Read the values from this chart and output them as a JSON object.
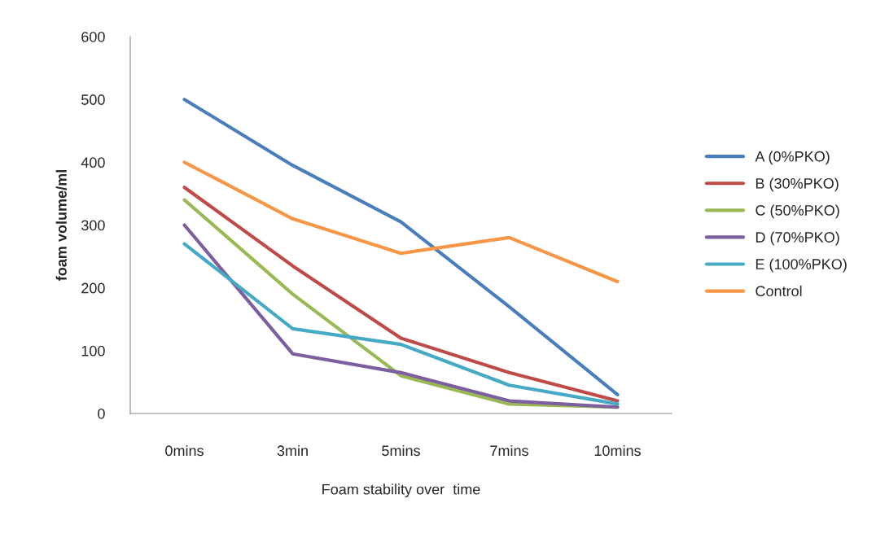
{
  "chart_data": {
    "type": "line",
    "xlabel": "Foam stability over  time",
    "ylabel": "foam volume/ml",
    "categories": [
      "0mins",
      "3min",
      "5mins",
      "7mins",
      "10mins"
    ],
    "series": [
      {
        "name": "A (0%PKO)",
        "color": "#4a7ebb",
        "values": [
          500,
          395,
          305,
          170,
          30
        ]
      },
      {
        "name": "B (30%PKO)",
        "color": "#be4b48",
        "values": [
          360,
          235,
          120,
          65,
          20
        ]
      },
      {
        "name": "C (50%PKO)",
        "color": "#98b954",
        "values": [
          340,
          190,
          60,
          15,
          10
        ]
      },
      {
        "name": "D (70%PKO)",
        "color": "#7d5fa0",
        "values": [
          300,
          95,
          65,
          20,
          10
        ]
      },
      {
        "name": "E (100%PKO)",
        "color": "#46aac5",
        "values": [
          270,
          135,
          110,
          45,
          15
        ]
      },
      {
        "name": "Control",
        "color": "#f79646",
        "values": [
          400,
          310,
          255,
          280,
          210
        ]
      }
    ],
    "ylim": [
      0,
      600
    ],
    "yticks": [
      0,
      100,
      200,
      300,
      400,
      500,
      600
    ],
    "grid": false,
    "legend": "right"
  }
}
